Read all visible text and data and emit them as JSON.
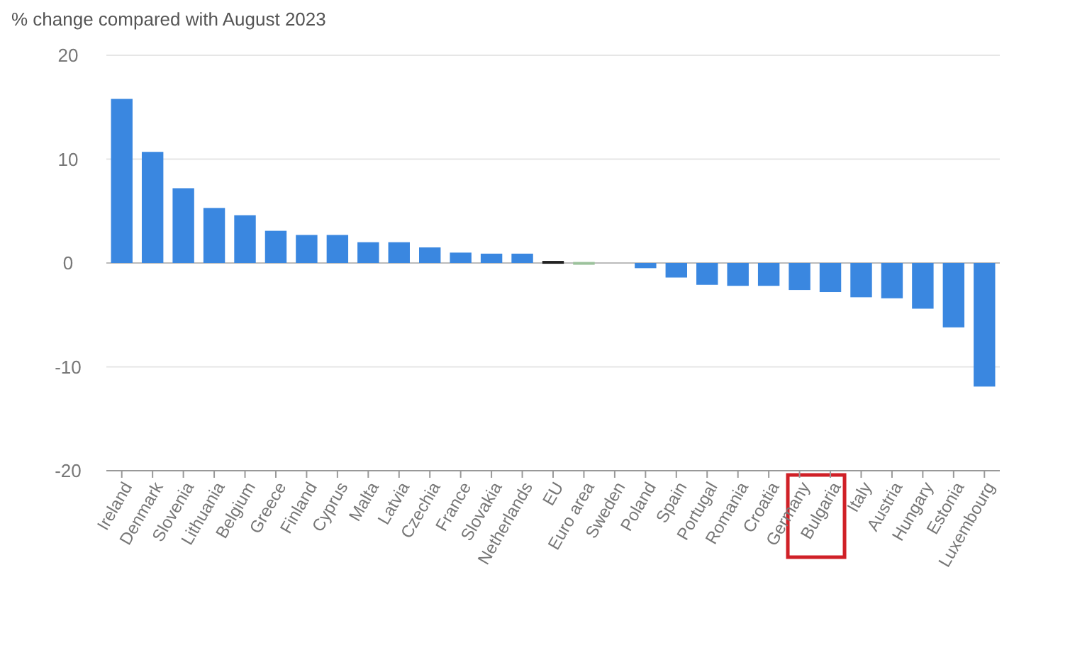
{
  "chart_data": {
    "type": "bar",
    "subtitle": "% change compared with August 2023",
    "categories": [
      "Ireland",
      "Denmark",
      "Slovenia",
      "Lithuania",
      "Belgium",
      "Greece",
      "Finland",
      "Cyprus",
      "Malta",
      "Latvia",
      "Czechia",
      "France",
      "Slovakia",
      "Netherlands",
      "EU",
      "Euro area",
      "Sweden",
      "Poland",
      "Spain",
      "Portugal",
      "Romania",
      "Croatia",
      "Germany",
      "Bulgaria",
      "Italy",
      "Austria",
      "Hungary",
      "Estonia",
      "Luxembourg"
    ],
    "values": [
      15.8,
      10.7,
      7.2,
      5.3,
      4.6,
      3.1,
      2.7,
      2.7,
      2.0,
      2.0,
      1.5,
      1.0,
      0.9,
      0.9,
      0.2,
      0.1,
      0,
      -0.5,
      -1.4,
      -2.1,
      -2.2,
      -2.2,
      -2.6,
      -2.8,
      -3.3,
      -3.4,
      -4.4,
      -6.2,
      -11.9
    ],
    "colors": [
      "#3a87e0",
      "#3a87e0",
      "#3a87e0",
      "#3a87e0",
      "#3a87e0",
      "#3a87e0",
      "#3a87e0",
      "#3a87e0",
      "#3a87e0",
      "#3a87e0",
      "#3a87e0",
      "#3a87e0",
      "#3a87e0",
      "#3a87e0",
      "#222222",
      "#9cc29c",
      "#3a87e0",
      "#3a87e0",
      "#3a87e0",
      "#3a87e0",
      "#3a87e0",
      "#3a87e0",
      "#3a87e0",
      "#3a87e0",
      "#3a87e0",
      "#3a87e0",
      "#3a87e0",
      "#3a87e0",
      "#3a87e0"
    ],
    "ylim": [
      -20,
      20
    ],
    "yticks": [
      -20,
      -10,
      0,
      10,
      20
    ],
    "grid": "y"
  }
}
